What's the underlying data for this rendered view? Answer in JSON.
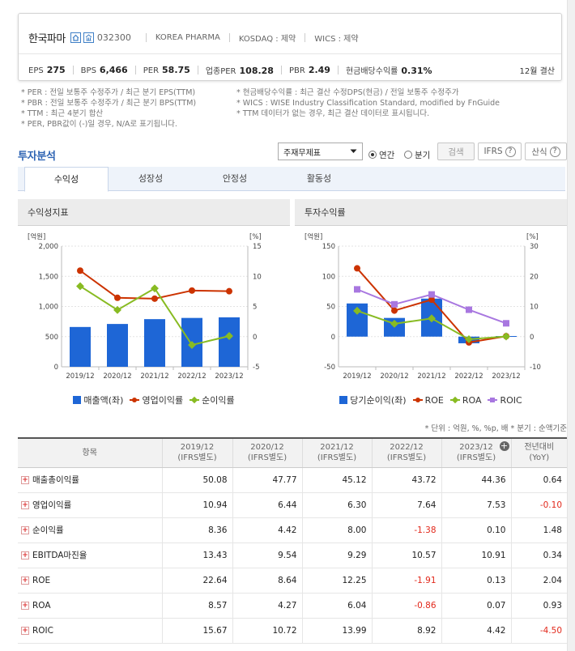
{
  "company": {
    "name": "한국파마",
    "code": "032300",
    "english_name": "KOREA PHARMA",
    "market": "KOSDAQ : 제약",
    "wics": "WICS : 제약",
    "settlement": "12월 결산"
  },
  "stats": [
    {
      "label": "EPS",
      "value": "275"
    },
    {
      "label": "BPS",
      "value": "6,466"
    },
    {
      "label": "PER",
      "value": "58.75"
    },
    {
      "label": "업종PER",
      "value": "108.28"
    },
    {
      "label": "PBR",
      "value": "2.49"
    },
    {
      "label": "현금배당수익률",
      "value": "0.31%"
    }
  ],
  "notes_left": [
    "* PER : 전일 보통주 수정주가 / 최근 분기 EPS(TTM)",
    "* PBR : 전일 보통주 수정주가 / 최근 분기 BPS(TTM)",
    "* TTM : 최근 4분기 합산",
    "* PER, PBR값이 (-)일 경우, N/A로 표기됩니다."
  ],
  "notes_right": [
    "* 현금배당수익률 : 최근 결산 수정DPS(현금) / 전일 보통주 수정주가",
    "* WICS : WISE Industry Classification Standard, modified by FnGuide",
    "* TTM 데이터가 없는 경우, 최근 결산 데이터로 표시됩니다."
  ],
  "section_title": "투자분석",
  "controls": {
    "select_value": "주재무제표",
    "radio_annual": "연간",
    "radio_quarter": "분기",
    "search": "검색",
    "ifrs": "IFRS",
    "formula": "산식"
  },
  "tabs": [
    "수익성",
    "성장성",
    "안정성",
    "활동성"
  ],
  "panels": {
    "left_title": "수익성지표",
    "right_title": "투자수익률"
  },
  "chart_data": [
    {
      "type": "bar",
      "categories": [
        "2019/12",
        "2020/12",
        "2021/12",
        "2022/12",
        "2023/12"
      ],
      "y_left_unit": "[억원]",
      "y_right_unit": "[%]",
      "y_left_lim": [
        0,
        2000
      ],
      "y_left_ticks": [
        "2,000",
        "1,500",
        "1,000",
        "500",
        "0"
      ],
      "y_right_lim": [
        -5,
        15
      ],
      "y_right_ticks": [
        "15",
        "10",
        "5",
        "0",
        "-5"
      ],
      "legend": [
        "매출액(좌)",
        "영업이익률",
        "순이익률"
      ],
      "series": [
        {
          "name": "매출액(좌)",
          "kind": "bar",
          "axis": "left",
          "color": "#1e66d6",
          "values": [
            660,
            710,
            790,
            810,
            820
          ]
        },
        {
          "name": "영업이익률",
          "kind": "line",
          "axis": "right",
          "color": "#cc3300",
          "marker": "circle",
          "values": [
            10.94,
            6.44,
            6.3,
            7.64,
            7.53
          ]
        },
        {
          "name": "순이익률",
          "kind": "line",
          "axis": "right",
          "color": "#88bb22",
          "marker": "diamond",
          "values": [
            8.36,
            4.42,
            8.0,
            -1.38,
            0.1
          ]
        }
      ]
    },
    {
      "type": "bar",
      "categories": [
        "2019/12",
        "2020/12",
        "2021/12",
        "2022/12",
        "2023/12"
      ],
      "y_left_unit": "[억원]",
      "y_right_unit": "[%]",
      "y_left_lim": [
        -50,
        150
      ],
      "y_left_ticks": [
        "150",
        "100",
        "50",
        "0",
        "-50"
      ],
      "y_right_lim": [
        -10,
        30
      ],
      "y_right_ticks": [
        "30",
        "20",
        "10",
        "0",
        "-10"
      ],
      "legend": [
        "당기순이익(좌)",
        "ROE",
        "ROA",
        "ROIC"
      ],
      "series": [
        {
          "name": "당기순이익(좌)",
          "kind": "bar",
          "axis": "left",
          "color": "#1e66d6",
          "values": [
            55,
            31,
            63,
            -11,
            1
          ]
        },
        {
          "name": "ROE",
          "kind": "line",
          "axis": "right",
          "color": "#cc3300",
          "marker": "circle",
          "values": [
            22.64,
            8.64,
            12.25,
            -1.91,
            0.13
          ]
        },
        {
          "name": "ROA",
          "kind": "line",
          "axis": "right",
          "color": "#88bb22",
          "marker": "diamond",
          "values": [
            8.57,
            4.27,
            6.04,
            -0.86,
            0.07
          ]
        },
        {
          "name": "ROIC",
          "kind": "line",
          "axis": "right",
          "color": "#a877e0",
          "marker": "square",
          "values": [
            15.67,
            10.72,
            13.99,
            8.92,
            4.42
          ]
        }
      ]
    }
  ],
  "unit_note": "* 단위 : 억원, %, %p, 배    * 분기 : 순액기준",
  "table": {
    "headers": [
      {
        "l1": "항목",
        "l2": ""
      },
      {
        "l1": "2019/12",
        "l2": "(IFRS별도)"
      },
      {
        "l1": "2020/12",
        "l2": "(IFRS별도)"
      },
      {
        "l1": "2021/12",
        "l2": "(IFRS별도)"
      },
      {
        "l1": "2022/12",
        "l2": "(IFRS별도)"
      },
      {
        "l1": "2023/12",
        "l2": "(IFRS별도)"
      },
      {
        "l1": "전년대비",
        "l2": "(YoY)"
      }
    ],
    "rows": [
      {
        "label": "매출총이익률",
        "values": [
          "50.08",
          "47.77",
          "45.12",
          "43.72",
          "44.36",
          "0.64"
        ]
      },
      {
        "label": "영업이익률",
        "values": [
          "10.94",
          "6.44",
          "6.30",
          "7.64",
          "7.53",
          "-0.10"
        ]
      },
      {
        "label": "순이익률",
        "values": [
          "8.36",
          "4.42",
          "8.00",
          "-1.38",
          "0.10",
          "1.48"
        ]
      },
      {
        "label": "EBITDA마진율",
        "values": [
          "13.43",
          "9.54",
          "9.29",
          "10.57",
          "10.91",
          "0.34"
        ]
      },
      {
        "label": "ROE",
        "values": [
          "22.64",
          "8.64",
          "12.25",
          "-1.91",
          "0.13",
          "2.04"
        ]
      },
      {
        "label": "ROA",
        "values": [
          "8.57",
          "4.27",
          "6.04",
          "-0.86",
          "0.07",
          "0.93"
        ]
      },
      {
        "label": "ROIC",
        "values": [
          "15.67",
          "10.72",
          "13.99",
          "8.92",
          "4.42",
          "-4.50"
        ]
      }
    ]
  }
}
